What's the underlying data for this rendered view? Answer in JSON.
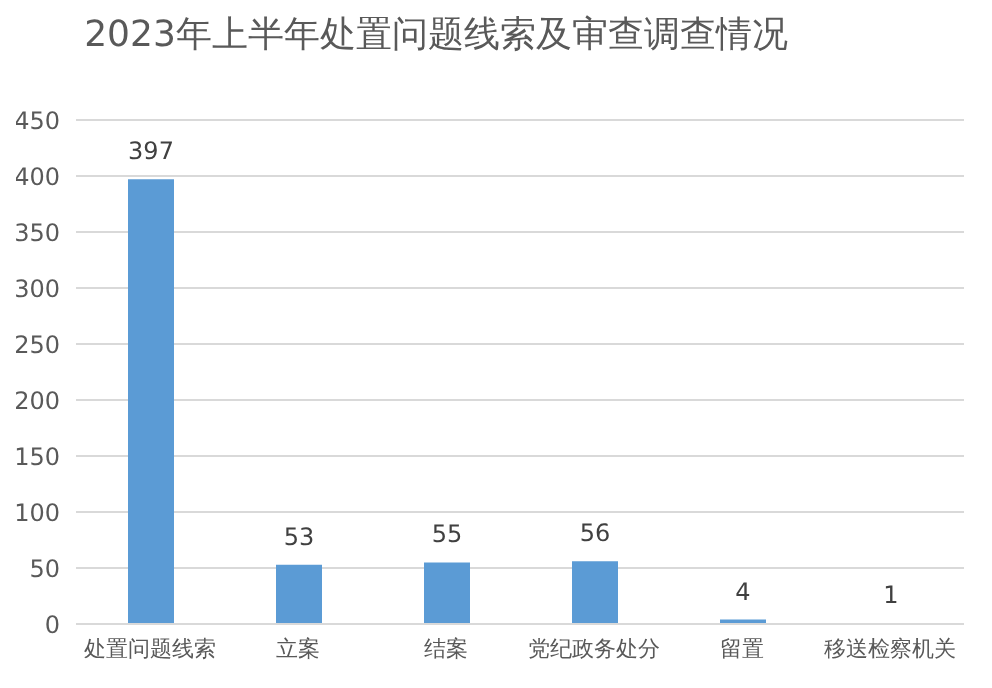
{
  "chart_data": {
    "type": "bar",
    "title": "2023年上半年处置问题线索及审查调查情况",
    "categories": [
      "处置问题线索",
      "立案",
      "结案",
      "党纪政务处分",
      "留置",
      "移送检察机关"
    ],
    "values": [
      397,
      53,
      55,
      56,
      4,
      1
    ],
    "color": "#5b9bd5",
    "ylim": [
      0,
      450
    ],
    "yticks": [
      0,
      50,
      100,
      150,
      200,
      250,
      300,
      350,
      400,
      450
    ],
    "grid": "y",
    "data_labels": true
  }
}
